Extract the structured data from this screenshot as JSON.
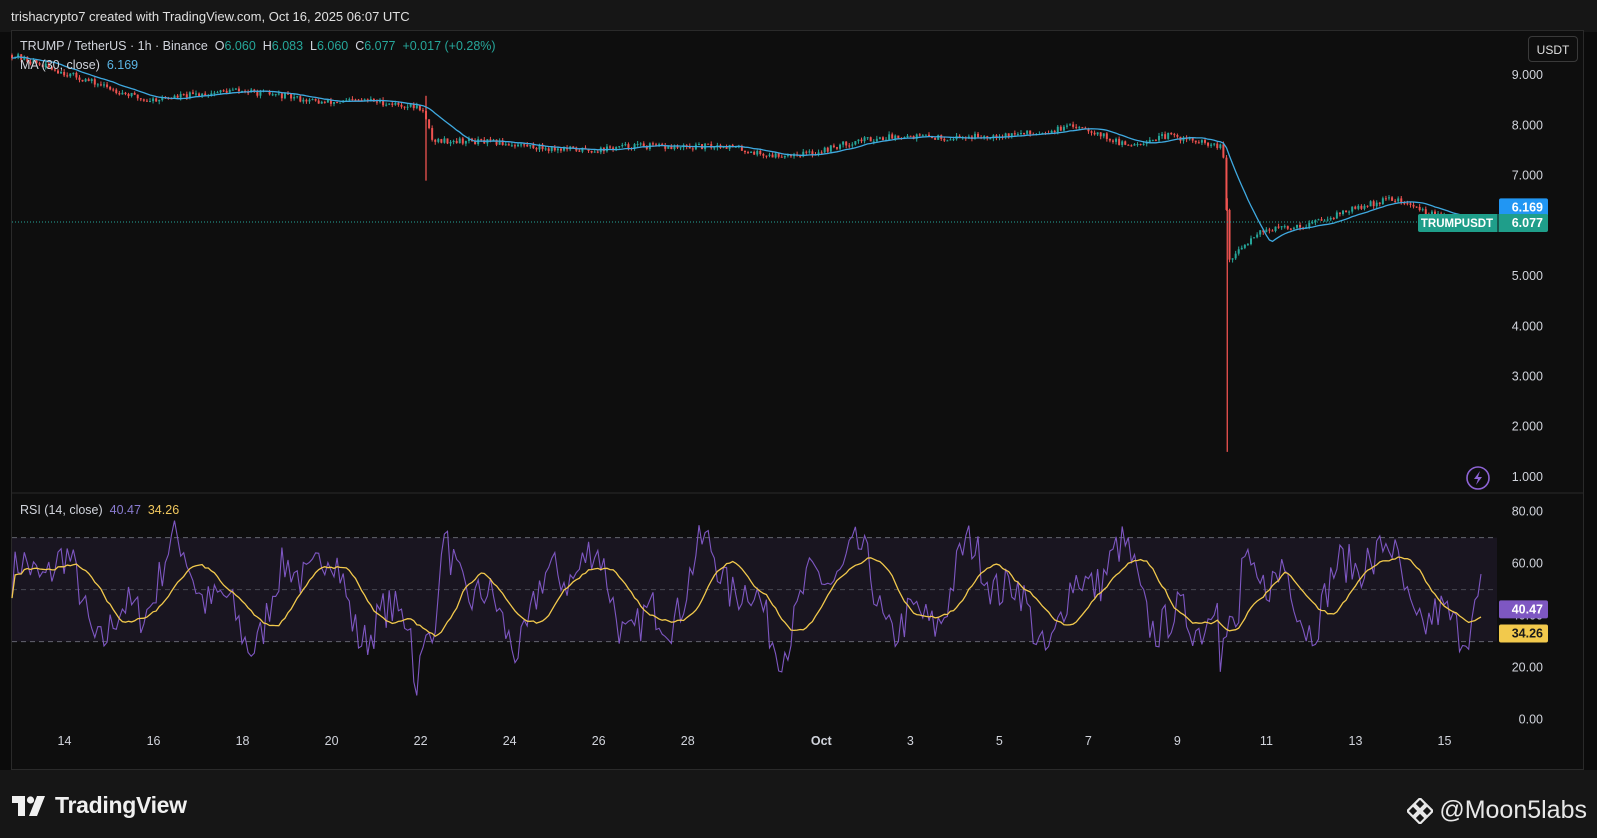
{
  "header": {
    "text": "trishacrypto7 created with TradingView.com, Oct 16, 2025 06:07 UTC"
  },
  "legend": {
    "symbol": "TRUMP / TetherUS · 1h · Binance",
    "o_label": "O",
    "o_value": "6.060",
    "h_label": "H",
    "h_value": "6.083",
    "l_label": "L",
    "l_value": "6.060",
    "c_label": "C",
    "c_value": "6.077",
    "change": "+0.017 (+0.28%)",
    "ma_label": "MA (30, close)",
    "ma_value": "6.169",
    "rsi_label": "RSI (14, close)",
    "rsi_value": "40.47",
    "rsi_ma_value": "34.26"
  },
  "currency_button": "USDT",
  "price_tags": {
    "ma": "6.169",
    "symbol": "TRUMPUSDT",
    "last": "6.077"
  },
  "rsi_tags": {
    "rsi": "40.47",
    "rsi_ma": "34.26"
  },
  "footer": {
    "brand": "TradingView",
    "watermark": "@Moon5labs"
  },
  "colors": {
    "up": "#26a69a",
    "down": "#ef5350",
    "ma": "#3fa9e0",
    "rsi": "#7e57c2",
    "rsi_ma": "#f2c94c",
    "tag_ma": "#2196f3",
    "tag_last": "#1f9e8a"
  },
  "icons": {
    "flash": "lightning-icon",
    "logo": "tradingview-logo-icon",
    "watermark": "binance-diamond-icon"
  },
  "chart_data": [
    {
      "type": "candlestick",
      "title": "TRUMP / TetherUS · 1h · Binance",
      "x_ticks": [
        "14",
        "16",
        "18",
        "20",
        "22",
        "24",
        "26",
        "28",
        "Oct",
        "3",
        "5",
        "7",
        "9",
        "11",
        "13",
        "15"
      ],
      "y_ticks": [
        "9.000",
        "8.000",
        "7.000",
        "6.000",
        "5.000",
        "4.000",
        "3.000",
        "2.000",
        "1.000"
      ],
      "ylim": [
        0.7,
        9.9
      ],
      "last_price": 6.077,
      "grid": false,
      "series": [
        {
          "name": "TRUMPUSDT",
          "x": [
            "Sep 13",
            "Sep 14",
            "Sep 15",
            "Sep 16",
            "Sep 17",
            "Sep 18",
            "Sep 19",
            "Sep 20",
            "Sep 21",
            "Sep 22",
            "Sep 22",
            "Sep 23",
            "Sep 24",
            "Sep 25",
            "Sep 26",
            "Sep 27",
            "Sep 28",
            "Sep 29",
            "Sep 30",
            "Oct 1",
            "Oct 2",
            "Oct 3",
            "Oct 4",
            "Oct 5",
            "Oct 6",
            "Oct 7",
            "Oct 8",
            "Oct 9",
            "Oct 10",
            "Oct 10",
            "Oct 11",
            "Oct 12",
            "Oct 13",
            "Oct 14",
            "Oct 15",
            "Oct 16"
          ],
          "close": [
            9.4,
            9.1,
            8.8,
            8.5,
            8.6,
            8.7,
            8.6,
            8.45,
            8.5,
            8.35,
            7.7,
            7.7,
            7.65,
            7.55,
            7.5,
            7.6,
            7.55,
            7.6,
            7.4,
            7.45,
            7.7,
            7.8,
            7.75,
            7.8,
            7.85,
            8.0,
            7.6,
            7.8,
            7.55,
            5.3,
            5.9,
            6.0,
            6.3,
            6.55,
            6.2,
            6.08
          ],
          "low_spikes": [
            {
              "x": "Sep 22",
              "low": 6.9
            },
            {
              "x": "Oct 10",
              "low": 1.5
            }
          ]
        },
        {
          "name": "MA (30, close)",
          "last": 6.169
        }
      ]
    },
    {
      "type": "line",
      "title": "RSI (14, close)",
      "y_ticks": [
        "80.00",
        "60.00",
        "40.00",
        "20.00",
        "0.00"
      ],
      "ylim": [
        -4,
        86
      ],
      "bands": [
        30,
        50,
        70
      ],
      "series": [
        {
          "name": "RSI",
          "last": 40.47
        },
        {
          "name": "RSI MA",
          "last": 34.26
        }
      ]
    }
  ]
}
